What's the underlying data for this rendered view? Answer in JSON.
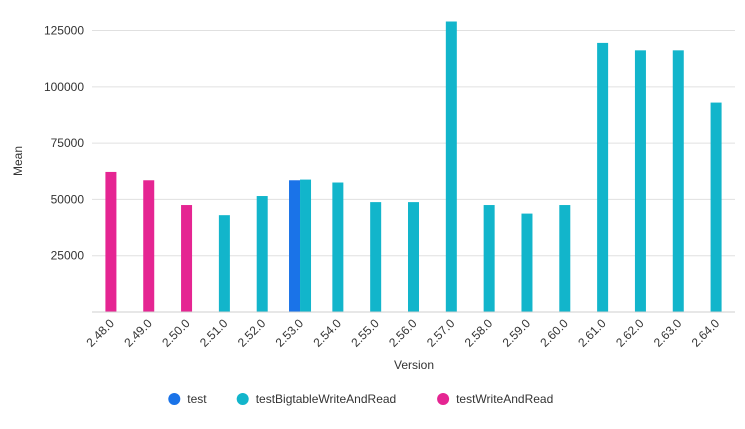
{
  "chart_data": {
    "type": "bar",
    "title": "",
    "xlabel": "Version",
    "ylabel": "Mean",
    "categories": [
      "2.48.0",
      "2.49.0",
      "2.50.0",
      "2.51.0",
      "2.52.0",
      "2.53.0",
      "2.54.0",
      "2.55.0",
      "2.56.0",
      "2.57.0",
      "2.58.0",
      "2.59.0",
      "2.60.0",
      "2.61.0",
      "2.62.0",
      "2.63.0",
      "2.64.0"
    ],
    "ylim": [
      0,
      135000
    ],
    "yticks": [
      25000,
      50000,
      75000,
      100000,
      125000
    ],
    "ytick_labels": [
      "25000",
      "50000",
      "75000",
      "100000",
      "125000"
    ],
    "grid": true,
    "legend_position": "bottom",
    "series": [
      {
        "name": "test",
        "color": "#1a73e8",
        "values": [
          null,
          null,
          null,
          null,
          null,
          58500,
          null,
          null,
          null,
          null,
          null,
          null,
          null,
          null,
          null,
          null,
          null
        ]
      },
      {
        "name": "testBigtableWriteAndRead",
        "color": "#12b5cb",
        "values": [
          null,
          null,
          null,
          43000,
          51500,
          58800,
          57500,
          48800,
          48800,
          129000,
          47500,
          43700,
          47500,
          119500,
          116200,
          116200,
          93000
        ]
      },
      {
        "name": "testWriteAndRead",
        "color": "#e52592",
        "values": [
          62200,
          58500,
          47500,
          null,
          null,
          null,
          null,
          null,
          null,
          null,
          null,
          null,
          null,
          null,
          null,
          null,
          null
        ]
      }
    ]
  }
}
